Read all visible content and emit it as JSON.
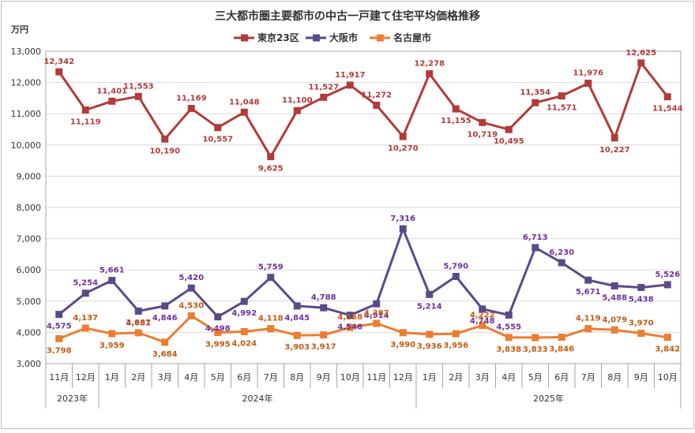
{
  "chart_data": {
    "type": "line",
    "title": "三大都市圏主要都市の中古一戸建て住宅平均価格推移",
    "ylabel": "万円",
    "ylim": [
      3000,
      13000
    ],
    "yticks": [
      "3,000",
      "4,000",
      "5,000",
      "6,000",
      "7,000",
      "8,000",
      "9,000",
      "10,000",
      "11,000",
      "12,000",
      "13,000"
    ],
    "grid": true,
    "legend": "top-center",
    "categories": [
      "11月",
      "12月",
      "1月",
      "2月",
      "3月",
      "4月",
      "5月",
      "6月",
      "7月",
      "8月",
      "9月",
      "10月",
      "11月",
      "12月",
      "1月",
      "2月",
      "3月",
      "4月",
      "5月",
      "6月",
      "7月",
      "8月",
      "9月",
      "10月"
    ],
    "year_groups": [
      {
        "label": "2023年",
        "start": 0,
        "end": 1
      },
      {
        "label": "2024年",
        "start": 2,
        "end": 13
      },
      {
        "label": "2025年",
        "start": 14,
        "end": 23
      }
    ],
    "series": [
      {
        "name": "東京23区",
        "color": "#b23b3b",
        "values": [
          12342,
          11119,
          11401,
          11553,
          10190,
          11169,
          10557,
          11048,
          9625,
          11100,
          11527,
          11917,
          11272,
          10270,
          12278,
          11155,
          10719,
          10495,
          11354,
          11571,
          11976,
          10227,
          12625,
          11544
        ],
        "labels": [
          "12,342",
          "11,119",
          "11,401",
          "11,553",
          "10,190",
          "11,169",
          "10,557",
          "11,048",
          "9,625",
          "11,100",
          "11,527",
          "11,917",
          "11,272",
          "10,270",
          "12,278",
          "11,155",
          "10,719",
          "10,495",
          "11,354",
          "11,571",
          "11,976",
          "10,227",
          "12,625",
          "11,544"
        ]
      },
      {
        "name": "大阪市",
        "color": "#5b4a8a",
        "label_color": "#7030a0",
        "values": [
          4575,
          5254,
          5661,
          4681,
          4846,
          5420,
          4498,
          4992,
          5759,
          4845,
          4788,
          4548,
          4914,
          7316,
          5214,
          5790,
          4748,
          4555,
          6713,
          6230,
          5671,
          5488,
          5438,
          5526
        ],
        "labels": [
          "4,575",
          "5,254",
          "5,661",
          "4,681",
          "4,846",
          "5,420",
          "4,498",
          "4,992",
          "5,759",
          "4,845",
          "4,788",
          "4,548",
          "4,914",
          "7,316",
          "5,214",
          "5,790",
          "4,748",
          "4,555",
          "6,713",
          "6,230",
          "5,671",
          "5,488",
          "5,438",
          "5,526"
        ]
      },
      {
        "name": "名古屋市",
        "color": "#ed7d31",
        "label_color": "#c55a11",
        "values": [
          3798,
          4137,
          3959,
          3987,
          3684,
          4530,
          3995,
          4024,
          4118,
          3903,
          3917,
          4158,
          4287,
          3990,
          3936,
          3956,
          4222,
          3838,
          3833,
          3846,
          4119,
          4079,
          3970,
          3842
        ],
        "labels": [
          "3,798",
          "4,137",
          "3,959",
          "3,987",
          "3,684",
          "4,530",
          "3,995",
          "4,024",
          "4,118",
          "3,903",
          "3,917",
          "4,158",
          "4,287",
          "3,990",
          "3,936",
          "3,956",
          "4,222",
          "3,838",
          "3,833",
          "3,846",
          "4,119",
          "4,079",
          "3,970",
          "3,842"
        ]
      }
    ]
  }
}
